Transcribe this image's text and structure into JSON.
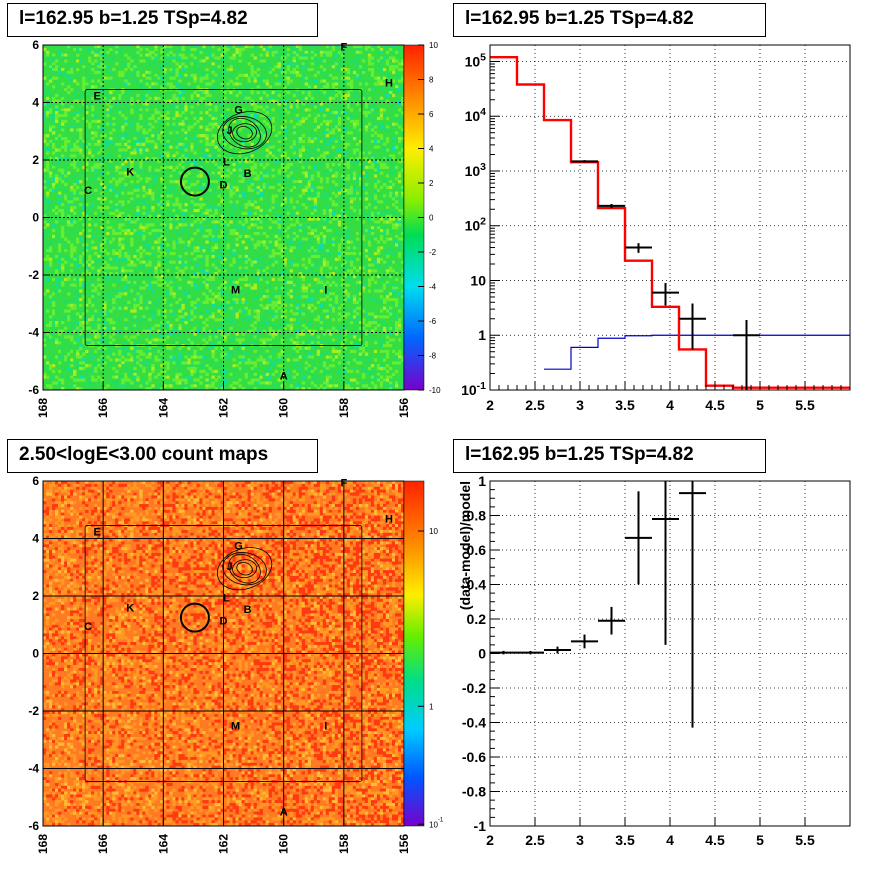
{
  "panels": {
    "tl_title": "l=162.95 b=1.25 TSp=4.82",
    "tr_title": "l=162.95 b=1.25 TSp=4.82",
    "bl_title": "2.50<logE<3.00 count maps",
    "br_title": "l=162.95 b=1.25 TSp=4.82"
  },
  "source_labels": [
    "A",
    "B",
    "C",
    "D",
    "E",
    "F",
    "G",
    "H",
    "I",
    "J",
    "K",
    "L",
    "M"
  ],
  "chart_data": [
    {
      "type": "heatmap",
      "xlabel": "",
      "ylabel": "",
      "xlim": [
        168,
        156
      ],
      "ylim": [
        -6,
        6
      ],
      "x_ticks": [
        "168",
        "166",
        "164",
        "162",
        "160",
        "158",
        "156"
      ],
      "y_ticks": [
        "6",
        "4",
        "2",
        "0",
        "-2",
        "-4",
        "-6"
      ],
      "colorbar_ticks": [
        "10",
        "8",
        "6",
        "4",
        "2",
        "0",
        "-2",
        "-4",
        "-6",
        "-8",
        "-10"
      ],
      "colorbar_range": [
        -10,
        10
      ],
      "grid": true
    },
    {
      "type": "line",
      "log_y": true,
      "xlim": [
        2,
        6
      ],
      "ylim": [
        0.1,
        200000
      ],
      "x_ticks": [
        "2",
        "2.5",
        "3",
        "3.5",
        "4",
        "4.5",
        "5",
        "5.5"
      ],
      "y_ticks": [
        "10^-1",
        "1",
        "10",
        "10^2",
        "10^3",
        "10^4",
        "10^5"
      ],
      "grid": true,
      "model_total": {
        "color": "#ff0000",
        "edges": [
          2,
          2.3,
          2.6,
          2.9,
          3.2,
          3.5,
          3.8,
          4.1,
          4.4,
          4.7,
          5.0,
          6.0
        ],
        "values": [
          120000,
          38000,
          8500,
          1450,
          210,
          23,
          3.3,
          0.55,
          0.12,
          0.11,
          0.11
        ]
      },
      "model_source": {
        "color": "#0000cc",
        "edges": [
          2.6,
          2.9,
          3.2,
          3.5,
          3.8,
          4.1,
          4.4,
          4.7,
          5.0,
          6.0
        ],
        "values": [
          0.24,
          0.6,
          0.88,
          0.98,
          1.0,
          1.0,
          1.0,
          1.0,
          1.0
        ]
      },
      "data_points": [
        {
          "x": 3.05,
          "y": 1500,
          "xerr": 0.15,
          "ylo": 1420,
          "yhi": 1580
        },
        {
          "x": 3.35,
          "y": 230,
          "xerr": 0.15,
          "ylo": 210,
          "yhi": 250
        },
        {
          "x": 3.65,
          "y": 40,
          "xerr": 0.15,
          "ylo": 32,
          "yhi": 48
        },
        {
          "x": 3.95,
          "y": 6,
          "xerr": 0.15,
          "ylo": 3.5,
          "yhi": 9
        },
        {
          "x": 4.25,
          "y": 2,
          "xerr": 0.15,
          "ylo": 0.55,
          "yhi": 3.8
        },
        {
          "x": 4.85,
          "y": 1,
          "xerr": 0.15,
          "ylo": 0.1,
          "yhi": 1.9
        }
      ]
    },
    {
      "type": "heatmap",
      "xlim": [
        168,
        156
      ],
      "ylim": [
        -6,
        6
      ],
      "x_ticks": [
        "168",
        "166",
        "164",
        "162",
        "160",
        "158",
        "156"
      ],
      "y_ticks": [
        "6",
        "4",
        "2",
        "0",
        "-2",
        "-4",
        "-6"
      ],
      "colorbar_ticks": [
        "10",
        "1",
        "10^-1"
      ],
      "colorbar_log": true,
      "grid": true
    },
    {
      "type": "scatter",
      "xlim": [
        2,
        6
      ],
      "ylim": [
        -1,
        1
      ],
      "ylabel": "(data-model)/model",
      "x_ticks": [
        "2",
        "2.5",
        "3",
        "3.5",
        "4",
        "4.5",
        "5",
        "5.5"
      ],
      "y_ticks": [
        "1",
        "0.8",
        "0.6",
        "0.4",
        "0.2",
        "0",
        "-0.2",
        "-0.4",
        "-0.6",
        "-0.8",
        "-1"
      ],
      "grid": true,
      "points": [
        {
          "x": 2.15,
          "y": 0.005,
          "xerr": 0.15,
          "yerr": 0.01
        },
        {
          "x": 2.45,
          "y": 0.005,
          "xerr": 0.15,
          "yerr": 0.01
        },
        {
          "x": 2.75,
          "y": 0.02,
          "xerr": 0.15,
          "yerr": 0.02
        },
        {
          "x": 3.05,
          "y": 0.07,
          "xerr": 0.15,
          "yerr": 0.04
        },
        {
          "x": 3.35,
          "y": 0.19,
          "xerr": 0.15,
          "yerr": 0.08
        },
        {
          "x": 3.65,
          "y": 0.67,
          "xerr": 0.15,
          "yerr": 0.27
        },
        {
          "x": 3.95,
          "y": 0.78,
          "xerr": 0.15,
          "yerr": 0.73
        },
        {
          "x": 4.25,
          "y": 0.93,
          "xerr": 0.15,
          "yerr": 1.36
        }
      ]
    }
  ]
}
